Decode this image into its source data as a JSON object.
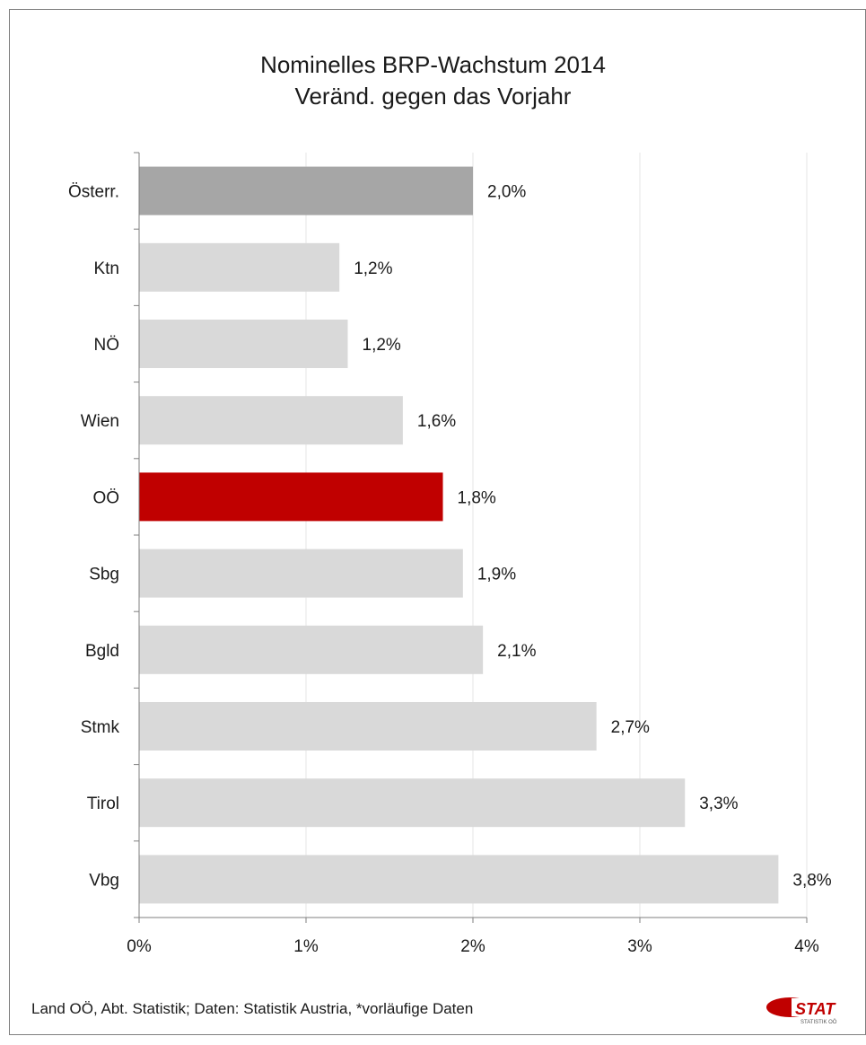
{
  "chart_data": {
    "type": "bar",
    "orientation": "horizontal",
    "title": "Nominelles BRP-Wachstum 2014",
    "subtitle": "Veränd. gegen das Vorjahr",
    "categories": [
      "Österr.",
      "Ktn",
      "NÖ",
      "Wien",
      "OÖ",
      "Sbg",
      "Bgld",
      "Stmk",
      "Tirol",
      "Vbg"
    ],
    "values": [
      2.0,
      1.2,
      1.25,
      1.58,
      1.82,
      1.94,
      2.06,
      2.74,
      3.27,
      3.83
    ],
    "data_labels": [
      "2,0%",
      "1,2%",
      "1,2%",
      "1,6%",
      "1,8%",
      "1,9%",
      "2,1%",
      "2,7%",
      "3,3%",
      "3,8%"
    ],
    "bar_colors": [
      "#a6a6a6",
      "#d9d9d9",
      "#d9d9d9",
      "#d9d9d9",
      "#c00000",
      "#d9d9d9",
      "#d9d9d9",
      "#d9d9d9",
      "#d9d9d9",
      "#d9d9d9"
    ],
    "xlim": [
      0,
      4
    ],
    "x_ticks": [
      0,
      1,
      2,
      3,
      4
    ],
    "x_tick_labels": [
      "0%",
      "1%",
      "2%",
      "3%",
      "4%"
    ],
    "grid": true,
    "legend": "none"
  },
  "footnote": "Land OÖ, Abt. Statistik; Daten: Statistik Austria, *vorläufige Daten",
  "logo": {
    "text": "STAT",
    "subtext": "STATISTIK OÖ",
    "color": "#c00000"
  }
}
